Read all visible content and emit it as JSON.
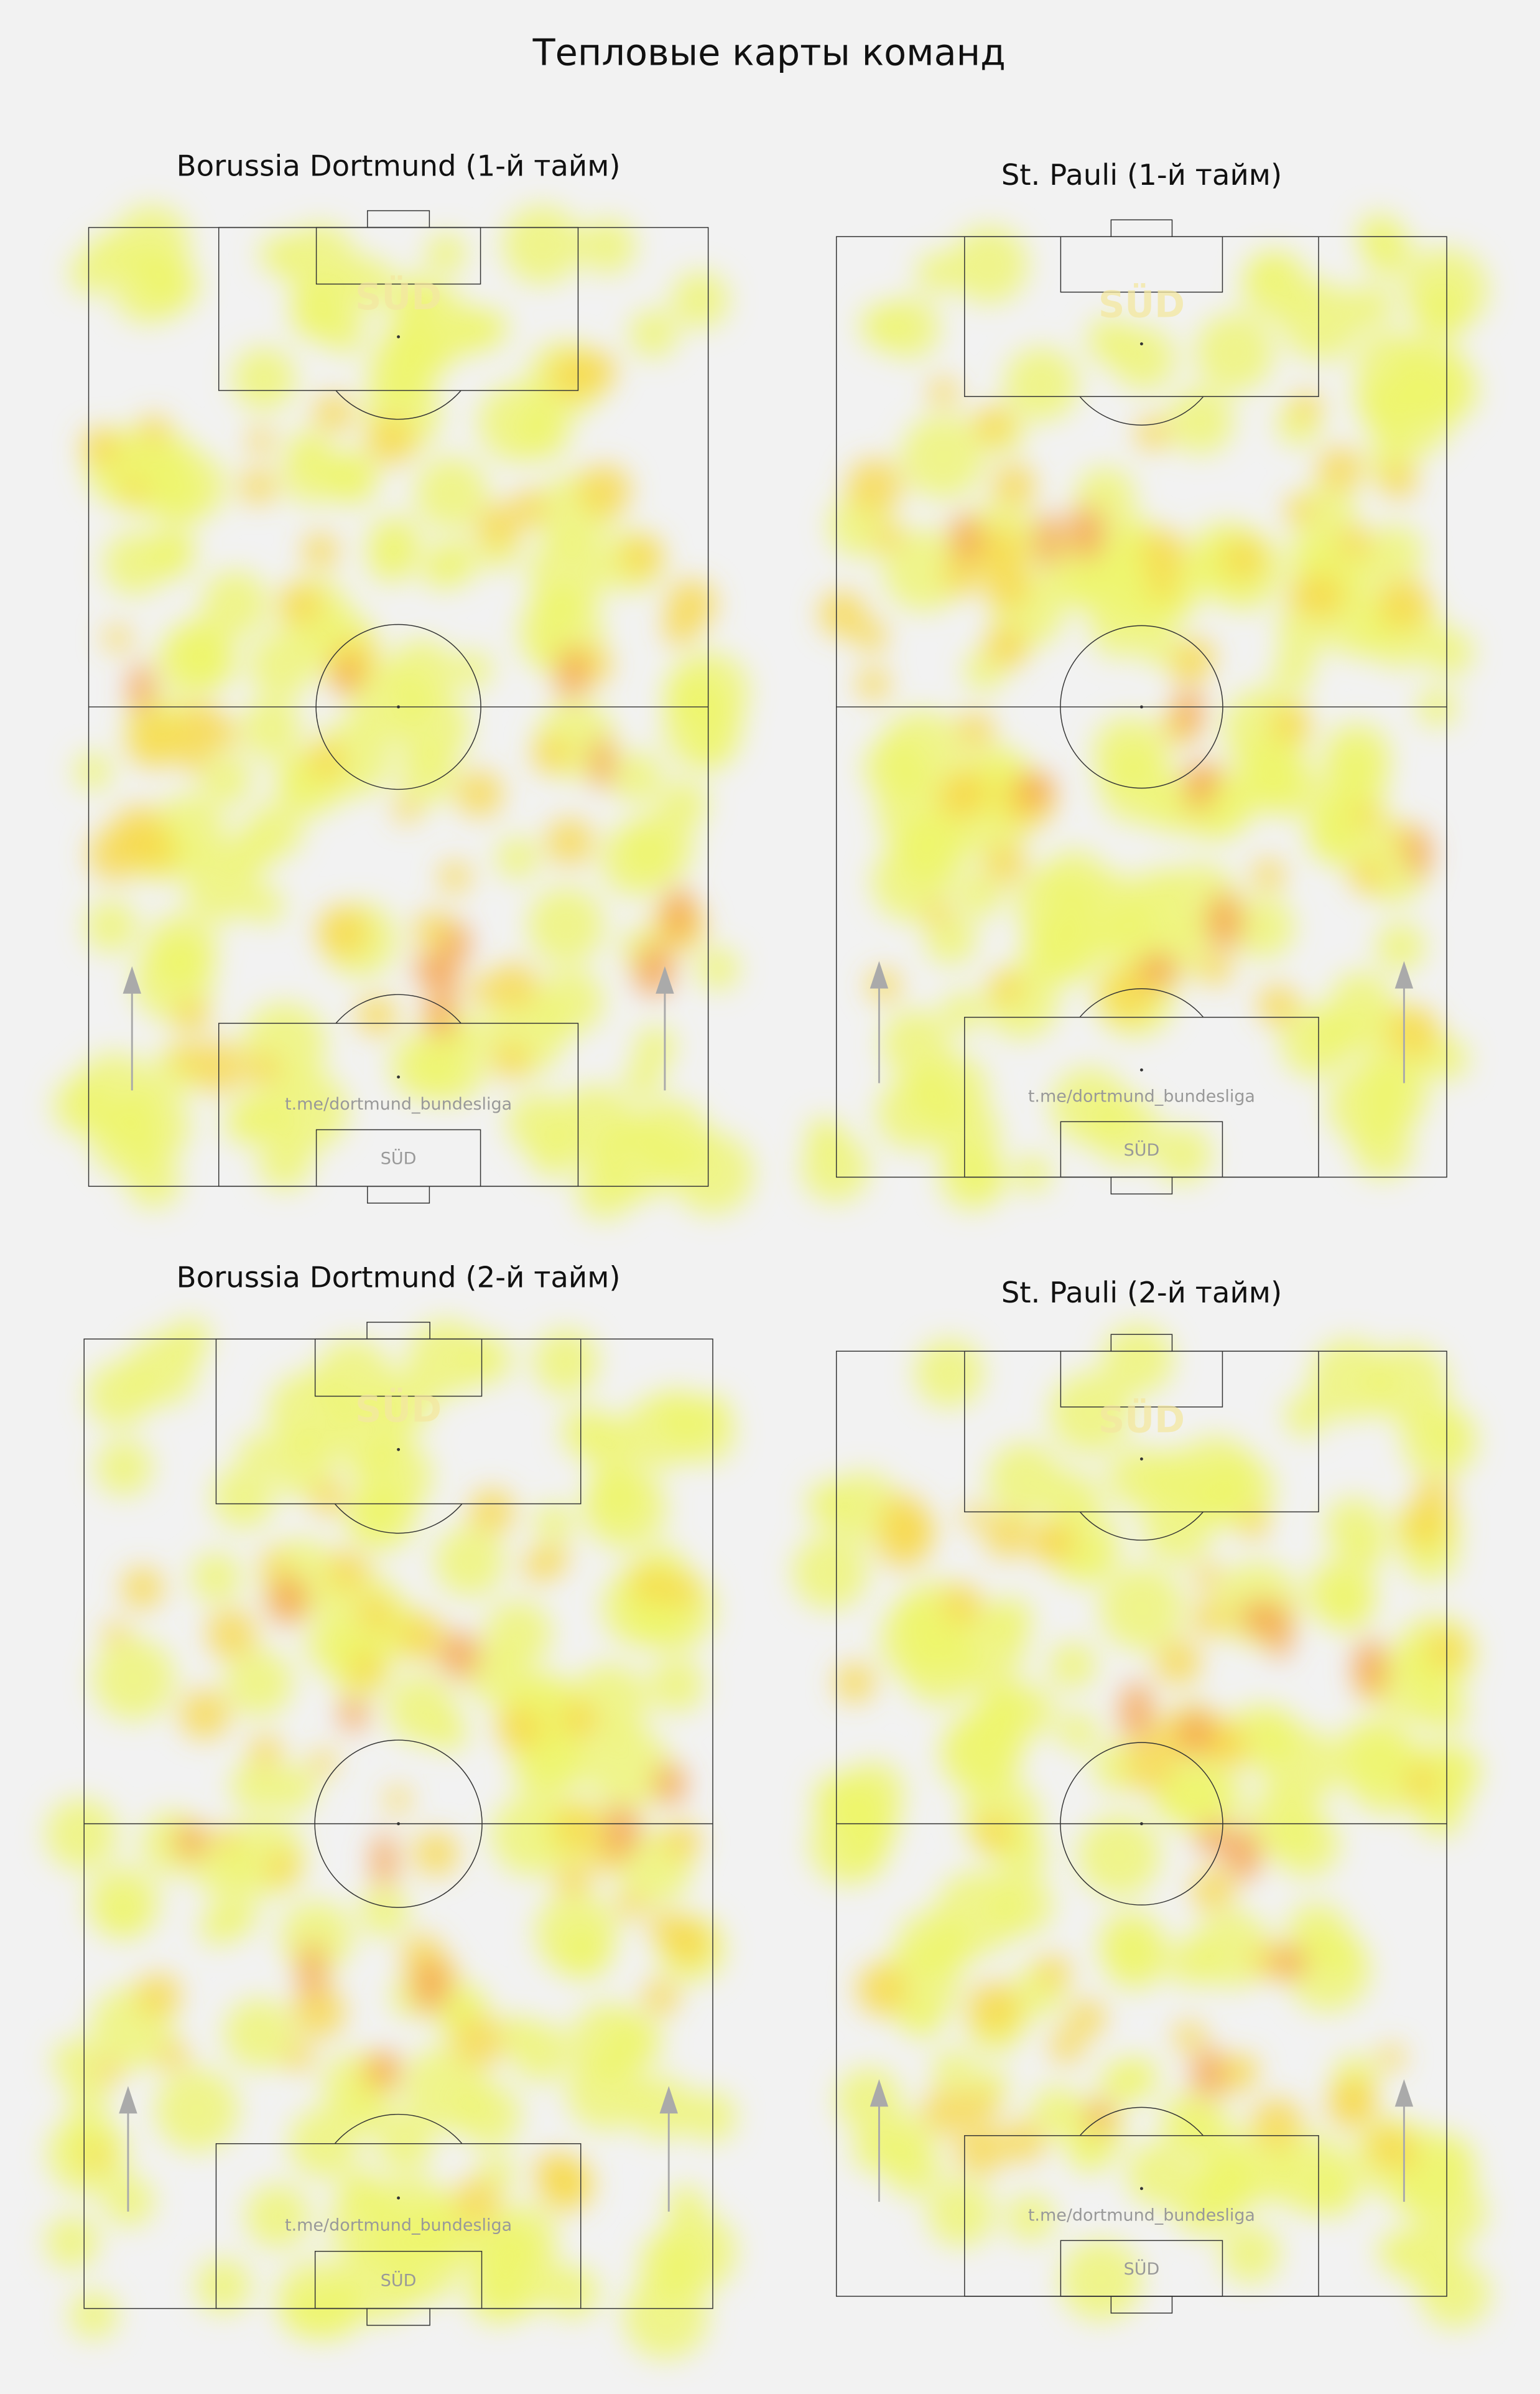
{
  "title": "Тепловые карты команд",
  "panels": [
    {
      "title": "Borussia Dortmund (1-й тайм)",
      "logo_text": "SÜD",
      "watermark": "t.me/dortmund_bundesliga",
      "badge": "SÜD"
    },
    {
      "title": "St. Pauli (1-й тайм)",
      "logo_text": "SÜD",
      "watermark": "t.me/dortmund_bundesliga",
      "badge": "SÜD"
    },
    {
      "title": "Borussia Dortmund (2-й тайм)",
      "logo_text": "SÜD",
      "watermark": "t.me/dortmund_bundesliga",
      "badge": "SÜD"
    },
    {
      "title": "St. Pauli (2-й тайм)",
      "logo_text": "SÜD",
      "watermark": "t.me/dortmund_bundesliga",
      "badge": "SÜD"
    }
  ]
}
